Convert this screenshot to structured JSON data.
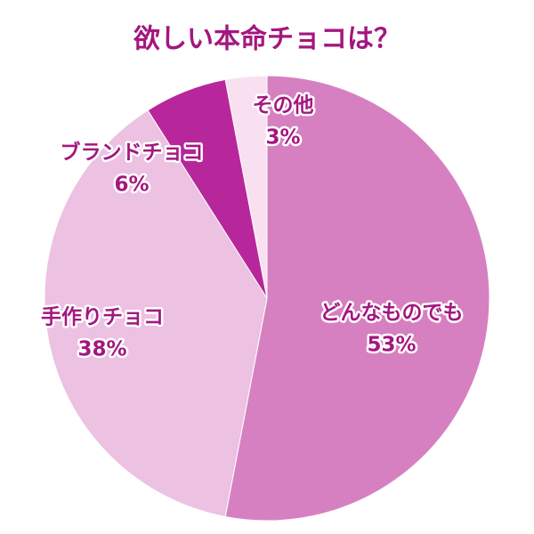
{
  "chart_data": {
    "type": "pie",
    "title": "欲しい本命チョコは？",
    "categories": [
      "どんなものでも",
      "手作りチョコ",
      "ブランドチョコ",
      "その他"
    ],
    "values": [
      53,
      38,
      6,
      3
    ],
    "value_labels": [
      "53%",
      "38%",
      "6%",
      "3%"
    ],
    "colors": [
      "#d680c1",
      "#ecc1e2",
      "#b7279b",
      "#f8e0f1"
    ]
  }
}
